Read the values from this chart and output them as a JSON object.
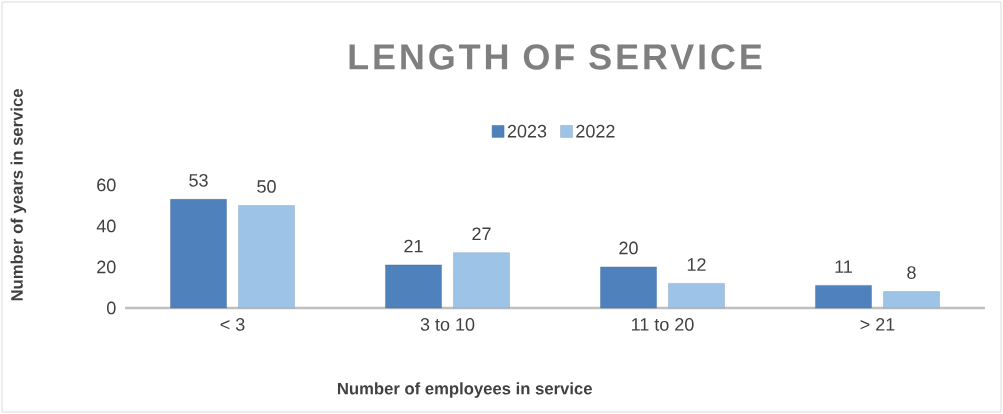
{
  "chart_data": {
    "type": "bar",
    "title": "LENGTH OF SERVICE",
    "xlabel": "Number of employees in service",
    "ylabel": "Number of years in service",
    "categories": [
      "< 3",
      "3 to 10",
      "11 to 20",
      "> 21"
    ],
    "series": [
      {
        "name": "2023",
        "color": "#4f81bd",
        "values": [
          53,
          21,
          20,
          11
        ]
      },
      {
        "name": "2022",
        "color": "#9dc3e6",
        "values": [
          50,
          27,
          12,
          8
        ]
      }
    ],
    "ylim": [
      0,
      60
    ],
    "yticks": [
      0,
      20,
      40,
      60
    ],
    "data_labels": true,
    "legend": "top"
  }
}
